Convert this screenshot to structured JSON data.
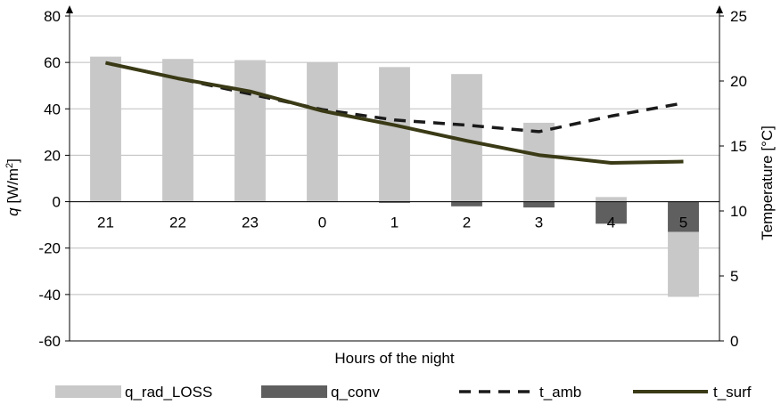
{
  "chart_data": {
    "type": "bar",
    "categories": [
      "21",
      "22",
      "23",
      "0",
      "1",
      "2",
      "3",
      "4",
      "5"
    ],
    "xlabel": "Hours of the night",
    "ylabel": {
      "italic": "q",
      "rest": " [W/m",
      "sup": "2",
      "close": "]"
    },
    "y2label": "Temperature [°C]",
    "ylim": [
      -60,
      80
    ],
    "yticks": [
      "-60",
      "-40",
      "-20",
      "0",
      "20",
      "40",
      "60",
      "80"
    ],
    "y2lim": [
      0,
      25
    ],
    "y2ticks": [
      "0",
      "5",
      "10",
      "15",
      "20",
      "25"
    ],
    "grid": true,
    "legend_position": "bottom",
    "series": [
      {
        "name": "q_rad_LOSS",
        "kind": "bar",
        "axis": "left",
        "color": "#c8c8c8",
        "values": [
          62.5,
          61.5,
          61,
          60,
          58,
          55,
          34,
          2,
          -41
        ]
      },
      {
        "name": "q_conv",
        "kind": "bar",
        "axis": "left",
        "color": "#5f5f5f",
        "values": [
          0,
          0,
          0,
          0,
          -0.5,
          -2,
          -2.5,
          -9.5,
          -13
        ]
      },
      {
        "name": "t_amb",
        "kind": "line",
        "axis": "right",
        "color": "#1a1a1a",
        "dash": true,
        "values": [
          21.4,
          20.2,
          19.0,
          17.8,
          17.0,
          16.6,
          16.1,
          17.3,
          18.3
        ]
      },
      {
        "name": "t_surf",
        "kind": "line",
        "axis": "right",
        "color": "#3a3a16",
        "dash": false,
        "values": [
          21.4,
          20.2,
          19.2,
          17.7,
          16.6,
          15.4,
          14.3,
          13.7,
          13.8
        ]
      }
    ]
  }
}
